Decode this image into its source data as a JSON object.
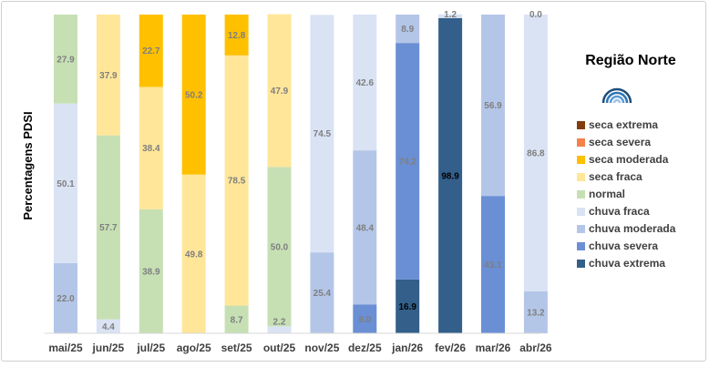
{
  "chart_data": {
    "type": "bar",
    "stacked": true,
    "title": "Região Norte",
    "ylabel": "Percentagens PDSI",
    "ylim": [
      0,
      100
    ],
    "grid": false,
    "legend_position": "right",
    "categories": [
      "mai/25",
      "jun/25",
      "jul/25",
      "ago/25",
      "set/25",
      "out/25",
      "nov/25",
      "dez/25",
      "jan/26",
      "fev/26",
      "mar/26",
      "abr/26"
    ],
    "series": [
      {
        "name": "chuva extrema",
        "color": "#335f8a",
        "values": [
          0,
          0,
          0,
          0,
          0,
          0,
          0,
          0,
          16.9,
          98.9,
          0,
          0
        ]
      },
      {
        "name": "chuva severa",
        "color": "#6a8fd4",
        "values": [
          0,
          0,
          0,
          0,
          0,
          0,
          0,
          9.0,
          74.2,
          0,
          43.1,
          0
        ]
      },
      {
        "name": "chuva moderada",
        "color": "#b4c6e8",
        "values": [
          22.0,
          0,
          0,
          0,
          0,
          0,
          25.4,
          48.4,
          8.9,
          0,
          56.9,
          13.2
        ]
      },
      {
        "name": "chuva fraca",
        "color": "#dae3f4",
        "values": [
          50.1,
          4.4,
          0,
          0,
          0,
          2.2,
          74.5,
          42.6,
          0,
          1.2,
          0,
          86.8
        ]
      },
      {
        "name": "normal",
        "color": "#c6e0b4",
        "values": [
          27.9,
          57.7,
          38.9,
          0,
          8.7,
          50.0,
          0,
          0,
          0,
          0,
          0,
          0
        ]
      },
      {
        "name": "seca fraca",
        "color": "#ffe699",
        "values": [
          0,
          37.9,
          38.4,
          49.8,
          78.5,
          47.9,
          0,
          0,
          0,
          0,
          0,
          0.0
        ]
      },
      {
        "name": "seca moderada",
        "color": "#ffc000",
        "values": [
          0,
          0,
          22.7,
          50.2,
          12.8,
          0,
          0,
          0,
          0,
          0,
          0,
          0
        ]
      },
      {
        "name": "seca severa",
        "color": "#f4804a",
        "values": [
          0,
          0,
          0,
          0,
          0,
          0,
          0,
          0,
          0,
          0,
          0,
          0
        ]
      },
      {
        "name": "seca extrema",
        "color": "#833c0b",
        "values": [
          0,
          0,
          0,
          0,
          0,
          0,
          0,
          0,
          0,
          0,
          0,
          0
        ]
      }
    ],
    "data_labels": [
      {
        "category": "mai/25",
        "series": "chuva moderada",
        "text": "22.0"
      },
      {
        "category": "mai/25",
        "series": "chuva fraca",
        "text": "50.1"
      },
      {
        "category": "mai/25",
        "series": "normal",
        "text": "27.9"
      },
      {
        "category": "jun/25",
        "series": "chuva fraca",
        "text": "4.4"
      },
      {
        "category": "jun/25",
        "series": "normal",
        "text": "57.7"
      },
      {
        "category": "jun/25",
        "series": "seca fraca",
        "text": "37.9"
      },
      {
        "category": "jul/25",
        "series": "normal",
        "text": "38.9"
      },
      {
        "category": "jul/25",
        "series": "seca fraca",
        "text": "38.4"
      },
      {
        "category": "jul/25",
        "series": "seca moderada",
        "text": "22.7"
      },
      {
        "category": "ago/25",
        "series": "seca fraca",
        "text": "49.8"
      },
      {
        "category": "ago/25",
        "series": "seca moderada",
        "text": "50.2"
      },
      {
        "category": "set/25",
        "series": "normal",
        "text": "8.7"
      },
      {
        "category": "set/25",
        "series": "seca fraca",
        "text": "78.5"
      },
      {
        "category": "set/25",
        "series": "seca moderada",
        "text": "12.8"
      },
      {
        "category": "out/25",
        "series": "chuva fraca",
        "text": "2.2"
      },
      {
        "category": "out/25",
        "series": "normal",
        "text": "50.0"
      },
      {
        "category": "out/25",
        "series": "seca fraca",
        "text": "47.9"
      },
      {
        "category": "nov/25",
        "series": "chuva moderada",
        "text": "25.4"
      },
      {
        "category": "nov/25",
        "series": "chuva fraca",
        "text": "74.5"
      },
      {
        "category": "dez/25",
        "series": "chuva severa",
        "text": "9.0"
      },
      {
        "category": "dez/25",
        "series": "chuva moderada",
        "text": "48.4"
      },
      {
        "category": "dez/25",
        "series": "chuva fraca",
        "text": "42.6"
      },
      {
        "category": "jan/26",
        "series": "chuva extrema",
        "text": "16.9"
      },
      {
        "category": "jan/26",
        "series": "chuva severa",
        "text": "74.2"
      },
      {
        "category": "jan/26",
        "series": "chuva moderada",
        "text": "8.9"
      },
      {
        "category": "fev/26",
        "series": "chuva extrema",
        "text": "98.9"
      },
      {
        "category": "fev/26",
        "series": "chuva fraca",
        "text": "1.2"
      },
      {
        "category": "mar/26",
        "series": "chuva severa",
        "text": "43.1"
      },
      {
        "category": "mar/26",
        "series": "chuva moderada",
        "text": "56.9"
      },
      {
        "category": "abr/26",
        "series": "chuva moderada",
        "text": "13.2"
      },
      {
        "category": "abr/26",
        "series": "chuva fraca",
        "text": "86.8"
      },
      {
        "category": "abr/26",
        "series": "seca fraca",
        "text": "0.0"
      }
    ],
    "legend_order": [
      "seca extrema",
      "seca severa",
      "seca moderada",
      "seca fraca",
      "normal",
      "chuva fraca",
      "chuva moderada",
      "chuva severa",
      "chuva extrema"
    ],
    "logo": "rainbow-logo-icon"
  }
}
